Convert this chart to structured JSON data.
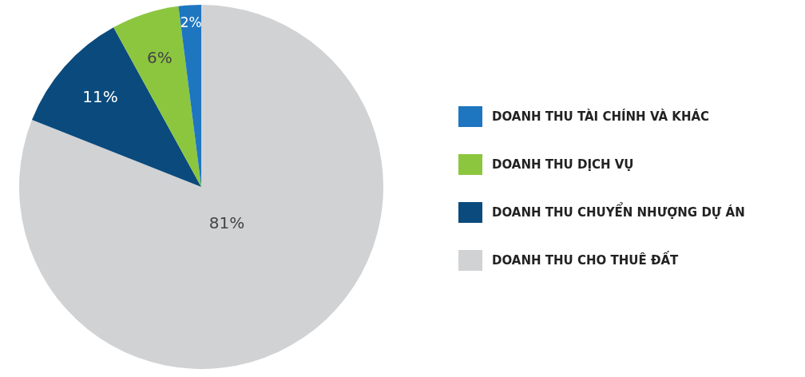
{
  "chart_data": {
    "type": "pie",
    "categories": [
      "DOANH THU CHO THUÊ ĐẤT",
      "DOANH THU CHUYỂN NHƯỢNG DỰ ÁN",
      "DOANH THU DỊCH VỤ",
      "DOANH THU TÀI CHÍNH VÀ KHÁC"
    ],
    "values": [
      81,
      11,
      6,
      2
    ],
    "colors": [
      "#d1d2d4",
      "#0b4a7c",
      "#8cc63f",
      "#1e76c0"
    ],
    "value_labels": [
      "81%",
      "11%",
      "6%",
      "2%"
    ],
    "legend": "right"
  }
}
